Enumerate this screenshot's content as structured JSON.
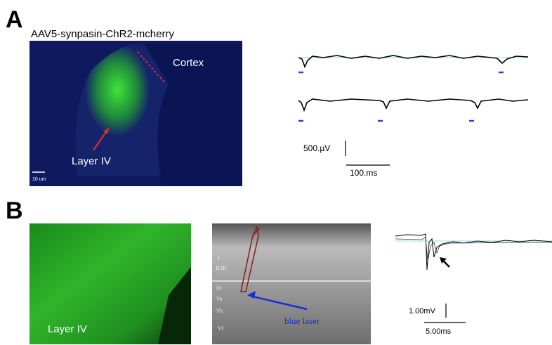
{
  "panel_a": {
    "label": "A",
    "image_title": "AAV5-synpasin-ChR2-mcherry",
    "annotations": [
      "Cortex",
      "Layer IV"
    ],
    "image_scale": "10 um",
    "scale_bar": {
      "vertical": "500.µV",
      "horizontal": "100.ms"
    }
  },
  "panel_b": {
    "label": "B",
    "image_label": "Layer IV",
    "layers": [
      "I",
      "II/III",
      "IV",
      "Va",
      "Vb",
      "VI"
    ],
    "arrow_label": "blue laser",
    "scale_bar": {
      "vertical": "1.00mV",
      "horizontal": "5.00ms"
    }
  }
}
